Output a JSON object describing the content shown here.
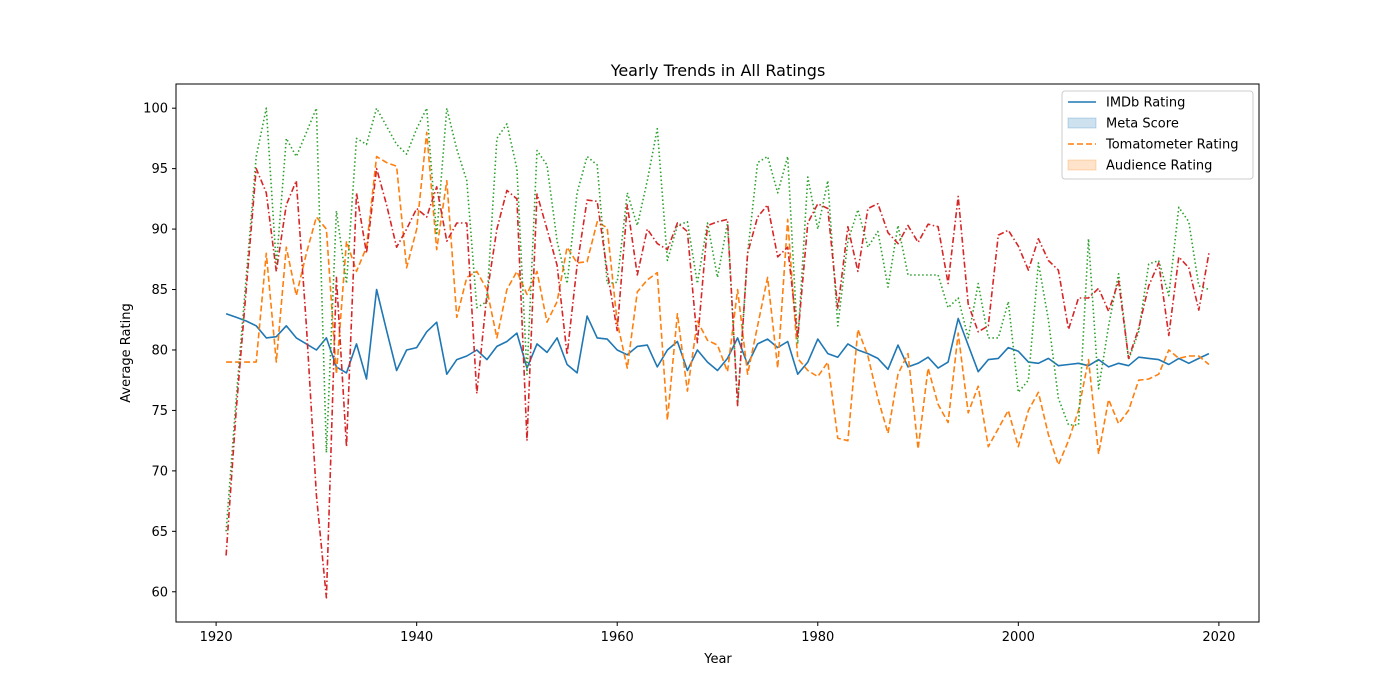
{
  "chart_data": {
    "type": "line",
    "title": "Yearly Trends in All Ratings",
    "xlabel": "Year",
    "ylabel": "Average Rating",
    "xlim": [
      1916,
      2024
    ],
    "ylim": [
      57.5,
      102
    ],
    "xticks": [
      1920,
      1940,
      1960,
      1980,
      2000,
      2020
    ],
    "yticks": [
      60,
      65,
      70,
      75,
      80,
      85,
      90,
      95,
      100
    ],
    "grid": false,
    "legend_position": "top-right",
    "legend": [
      {
        "label": "IMDb Rating",
        "kind": "line",
        "color": "#1f77b4",
        "dash": "solid"
      },
      {
        "label": "Meta Score",
        "kind": "patch",
        "color": "#1f77b4"
      },
      {
        "label": "Tomatometer Rating",
        "kind": "line",
        "color": "#ff7f0e",
        "dash": "dashed"
      },
      {
        "label": "Audience Rating",
        "kind": "patch",
        "color": "#ff7f0e"
      }
    ],
    "series": [
      {
        "name": "IMDb Rating",
        "color": "#1f77b4",
        "dash": "solid",
        "x": [
          1921,
          1922,
          1923,
          1924,
          1925,
          1926,
          1927,
          1928,
          1929,
          1930,
          1931,
          1932,
          1933,
          1934,
          1935,
          1936,
          1937,
          1938,
          1939,
          1940,
          1941,
          1942,
          1943,
          1944,
          1945,
          1946,
          1947,
          1948,
          1949,
          1950,
          1951,
          1952,
          1953,
          1954,
          1955,
          1956,
          1957,
          1958,
          1959,
          1960,
          1961,
          1962,
          1963,
          1964,
          1965,
          1966,
          1967,
          1968,
          1969,
          1970,
          1971,
          1972,
          1973,
          1974,
          1975,
          1976,
          1977,
          1978,
          1979,
          1980,
          1981,
          1982,
          1983,
          1984,
          1985,
          1986,
          1987,
          1988,
          1989,
          1990,
          1991,
          1992,
          1993,
          1994,
          1995,
          1996,
          1997,
          1998,
          1999,
          2000,
          2001,
          2002,
          2003,
          2004,
          2005,
          2006,
          2007,
          2008,
          2009,
          2010,
          2011,
          2012,
          2013,
          2014,
          2015,
          2016,
          2017,
          2018,
          2019
        ],
        "y": [
          83.0,
          82.7,
          82.4,
          82.0,
          81.0,
          81.1,
          82.0,
          81.0,
          80.5,
          80.0,
          81.0,
          78.6,
          78.1,
          80.5,
          77.6,
          85.0,
          81.6,
          78.3,
          80.0,
          80.2,
          81.5,
          82.3,
          78.0,
          79.2,
          79.5,
          80.0,
          79.2,
          80.3,
          80.7,
          81.4,
          78.5,
          80.5,
          79.8,
          81.0,
          78.8,
          78.1,
          82.8,
          81.0,
          80.9,
          80.0,
          79.6,
          80.3,
          80.4,
          78.6,
          80.0,
          80.7,
          78.3,
          80.0,
          79.0,
          78.3,
          79.3,
          81.0,
          78.8,
          80.5,
          80.9,
          80.2,
          80.7,
          78.0,
          79.0,
          80.9,
          79.7,
          79.4,
          80.5,
          80.0,
          79.7,
          79.3,
          78.4,
          80.4,
          78.6,
          78.9,
          79.4,
          78.5,
          79.0,
          82.6,
          80.4,
          78.2,
          79.2,
          79.3,
          80.2,
          79.9,
          79.0,
          78.9,
          79.3,
          78.7,
          78.8,
          78.9,
          78.7,
          79.2,
          78.6,
          78.9,
          78.7,
          79.4,
          79.3,
          79.2,
          78.8,
          79.3,
          78.9,
          79.3,
          79.7
        ]
      },
      {
        "name": "",
        "color": "#ff7f0e",
        "dash": "dashed",
        "x": [
          1921,
          1922,
          1923,
          1924,
          1925,
          1926,
          1927,
          1928,
          1929,
          1930,
          1931,
          1932,
          1933,
          1934,
          1935,
          1936,
          1937,
          1938,
          1939,
          1940,
          1941,
          1942,
          1943,
          1944,
          1945,
          1946,
          1947,
          1948,
          1949,
          1950,
          1951,
          1952,
          1953,
          1954,
          1955,
          1956,
          1957,
          1958,
          1959,
          1960,
          1961,
          1962,
          1963,
          1964,
          1965,
          1966,
          1967,
          1968,
          1969,
          1970,
          1971,
          1972,
          1973,
          1974,
          1975,
          1976,
          1977,
          1978,
          1979,
          1980,
          1981,
          1982,
          1983,
          1984,
          1985,
          1986,
          1987,
          1988,
          1989,
          1990,
          1991,
          1992,
          1993,
          1994,
          1995,
          1996,
          1997,
          1998,
          1999,
          2000,
          2001,
          2002,
          2003,
          2004,
          2005,
          2006,
          2007,
          2008,
          2009,
          2010,
          2011,
          2012,
          2013,
          2014,
          2015,
          2016,
          2017,
          2018,
          2019
        ],
        "y": [
          79,
          79,
          79,
          79,
          88,
          79,
          88.5,
          84.5,
          88,
          91,
          90,
          78,
          89,
          86.5,
          88.5,
          96,
          95.5,
          95.2,
          86.8,
          90,
          98,
          88.3,
          94,
          82.7,
          86,
          86.5,
          85,
          81,
          85,
          86.5,
          84.6,
          86.5,
          82.3,
          84,
          88.5,
          87.2,
          87.3,
          90.6,
          90.1,
          82.3,
          78.5,
          84.8,
          85.8,
          86.4,
          74.2,
          83,
          76.6,
          82.4,
          80.8,
          80.4,
          78.2,
          85,
          78,
          82,
          86,
          78.5,
          90.8,
          79.3,
          78.3,
          77.8,
          79,
          72.7,
          72.5,
          81.7,
          79.5,
          76,
          73.1,
          78,
          79.7,
          71.8,
          78.5,
          75.5,
          74,
          81.4,
          74.8,
          77,
          72,
          73.5,
          75,
          72,
          75,
          76.5,
          73,
          70.5,
          72.5,
          75,
          79.2,
          71.4,
          75.9,
          73.9,
          75,
          77.5,
          77.6,
          78,
          80,
          79.3,
          79.5,
          79.5,
          78.8
        ]
      },
      {
        "name": "",
        "color": "#2ca02c",
        "dash": "dotted",
        "x": [
          1921,
          1922,
          1923,
          1924,
          1925,
          1926,
          1927,
          1928,
          1929,
          1930,
          1931,
          1932,
          1933,
          1934,
          1935,
          1936,
          1937,
          1938,
          1939,
          1940,
          1941,
          1942,
          1943,
          1944,
          1945,
          1946,
          1947,
          1948,
          1949,
          1950,
          1951,
          1952,
          1953,
          1954,
          1955,
          1956,
          1957,
          1958,
          1959,
          1960,
          1961,
          1962,
          1963,
          1964,
          1965,
          1966,
          1967,
          1968,
          1969,
          1970,
          1971,
          1972,
          1973,
          1974,
          1975,
          1976,
          1977,
          1978,
          1979,
          1980,
          1981,
          1982,
          1983,
          1984,
          1985,
          1986,
          1987,
          1988,
          1989,
          1990,
          1991,
          1992,
          1993,
          1994,
          1995,
          1996,
          1997,
          1998,
          1999,
          2000,
          2001,
          2002,
          2003,
          2004,
          2005,
          2006,
          2007,
          2008,
          2009,
          2010,
          2011,
          2012,
          2013,
          2014,
          2015,
          2016,
          2017,
          2018,
          2019
        ],
        "y": [
          65,
          76,
          86,
          96,
          100,
          87,
          97.5,
          96,
          98,
          100,
          71.5,
          91.5,
          85.5,
          97.5,
          97,
          100,
          98.5,
          97,
          96.2,
          98.3,
          100,
          89.5,
          100,
          96.6,
          94,
          83.5,
          84,
          97.5,
          98.7,
          95,
          78,
          96.5,
          95.3,
          89,
          85.5,
          93,
          96,
          95.3,
          85.5,
          85.6,
          93,
          90.3,
          94,
          98.3,
          87.4,
          90.3,
          90.6,
          85.5,
          90.5,
          86,
          90.5,
          75.5,
          88,
          95.5,
          96,
          93,
          96,
          80.5,
          94.3,
          90,
          94,
          82,
          89,
          91.6,
          88.5,
          89.8,
          85.2,
          90.3,
          86.2,
          86.2,
          86.2,
          86.2,
          83.5,
          84.3,
          81,
          85.5,
          81,
          81,
          84,
          76.5,
          77.5,
          87.2,
          82.5,
          76,
          73.8,
          73.8,
          89.2,
          76.8,
          82,
          86.3,
          79.2,
          81.5,
          87.1,
          87.4,
          84.5,
          91.8,
          90.6,
          85.3,
          85
        ]
      },
      {
        "name": "",
        "color": "#d62728",
        "dash": "dashdot",
        "x": [
          1921,
          1922,
          1923,
          1924,
          1925,
          1926,
          1927,
          1928,
          1929,
          1930,
          1931,
          1932,
          1933,
          1934,
          1935,
          1936,
          1937,
          1938,
          1939,
          1940,
          1941,
          1942,
          1943,
          1944,
          1945,
          1946,
          1947,
          1948,
          1949,
          1950,
          1951,
          1952,
          1953,
          1954,
          1955,
          1956,
          1957,
          1958,
          1959,
          1960,
          1961,
          1962,
          1963,
          1964,
          1965,
          1966,
          1967,
          1968,
          1969,
          1970,
          1971,
          1972,
          1973,
          1974,
          1975,
          1976,
          1977,
          1978,
          1979,
          1980,
          1981,
          1982,
          1983,
          1984,
          1985,
          1986,
          1987,
          1988,
          1989,
          1990,
          1991,
          1992,
          1993,
          1994,
          1995,
          1996,
          1997,
          1998,
          1999,
          2000,
          2001,
          2002,
          2003,
          2004,
          2005,
          2006,
          2007,
          2008,
          2009,
          2010,
          2011,
          2012,
          2013,
          2014,
          2015,
          2016,
          2017,
          2018,
          2019
        ],
        "y": [
          63,
          75,
          85,
          95,
          93,
          86.5,
          92,
          94,
          82,
          68,
          59.5,
          86,
          72,
          93,
          88,
          95,
          92,
          88.5,
          90,
          91.7,
          91,
          93.5,
          89,
          90.5,
          90.5,
          76.4,
          84.6,
          90,
          93.2,
          92.5,
          72.5,
          92.9,
          90,
          87,
          79.6,
          87,
          92.4,
          92.3,
          86.5,
          81.6,
          92,
          86.2,
          90,
          88.8,
          88.3,
          90.5,
          89.8,
          80.6,
          90.3,
          90.6,
          90.8,
          75.4,
          88,
          91,
          92,
          87.7,
          88.5,
          81,
          90.5,
          92.1,
          91.7,
          83.4,
          90.2,
          86.5,
          91.7,
          92.1,
          89.7,
          88.8,
          90.3,
          88.9,
          90.4,
          90.2,
          85.5,
          92.7,
          83.8,
          81.5,
          82,
          89.5,
          89.9,
          88.6,
          86.6,
          89.2,
          87.4,
          86.6,
          81.7,
          84.3,
          84.3,
          85.1,
          83.2,
          85.7,
          79.3,
          81.8,
          85.3,
          87.2,
          81.2,
          87.7,
          86.8,
          83.3,
          88
        ]
      }
    ]
  }
}
